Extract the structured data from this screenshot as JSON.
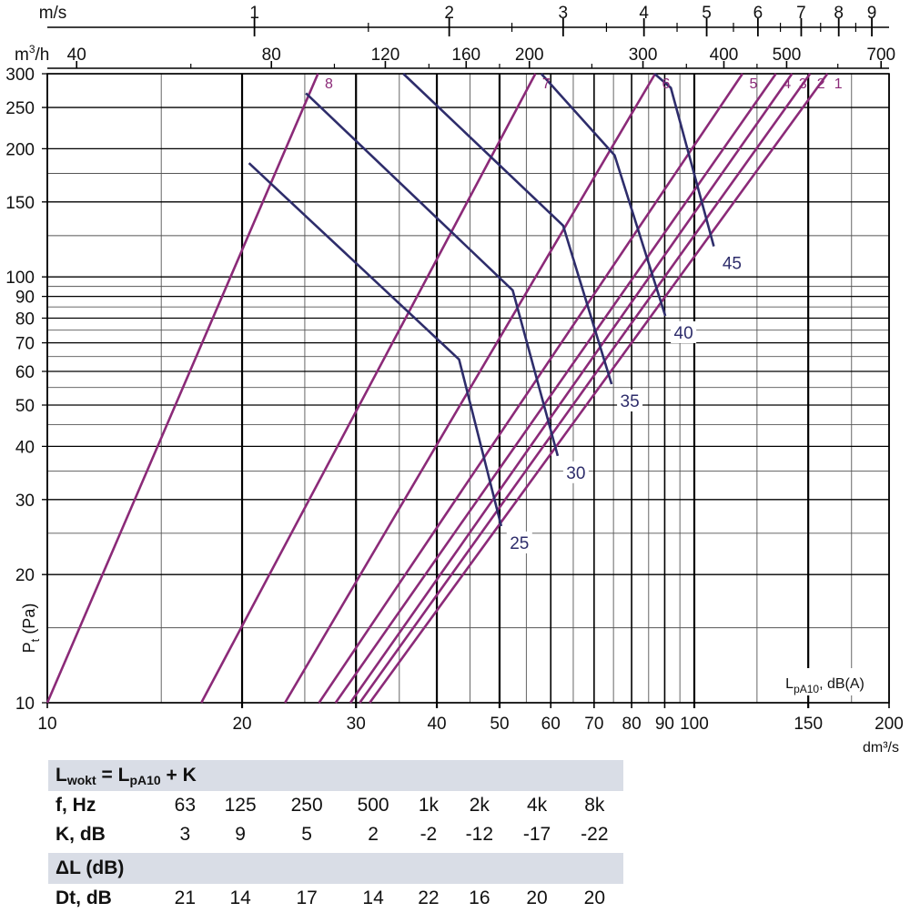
{
  "chart_data": {
    "type": "line",
    "x_scale": "log",
    "y_scale": "log",
    "xlim": [
      10,
      200
    ],
    "ylim": [
      10,
      300
    ],
    "xlabel": "dm³/s",
    "ylabel": "Pt (Pa)",
    "ylabel_main": "P",
    "ylabel_sub": "t",
    "ylabel_unit": " (Pa)",
    "x_ticks": [
      10,
      20,
      30,
      40,
      50,
      60,
      70,
      80,
      90,
      100,
      150,
      200
    ],
    "y_ticks": [
      10,
      20,
      30,
      40,
      50,
      60,
      70,
      80,
      90,
      100,
      150,
      200,
      250,
      300
    ],
    "top_axis_ms": {
      "label": "m/s",
      "ticks": [
        {
          "label": "1",
          "x": 20.9
        },
        {
          "label": "2",
          "x": 41.8
        },
        {
          "label": "3",
          "x": 62.7
        },
        {
          "label": "4",
          "x": 83.6
        },
        {
          "label": "5",
          "x": 104.5
        },
        {
          "label": "6",
          "x": 125.4
        },
        {
          "label": "7",
          "x": 146.3
        },
        {
          "label": "8",
          "x": 167.2
        },
        {
          "label": "9",
          "x": 188.1
        }
      ]
    },
    "top_axis_m3h": {
      "label_main": "m",
      "label_sup": "3",
      "label_tail": "/h",
      "ticks": [
        {
          "label": "40",
          "x": 11.1
        },
        {
          "label": "80",
          "x": 22.2
        },
        {
          "label": "120",
          "x": 33.3
        },
        {
          "label": "160",
          "x": 44.4
        },
        {
          "label": "200",
          "x": 55.6
        },
        {
          "label": "300",
          "x": 83.3
        },
        {
          "label": "400",
          "x": 111.1
        },
        {
          "label": "500",
          "x": 138.9
        },
        {
          "label": "700",
          "x": 194.4
        }
      ]
    },
    "damper_lines": [
      {
        "label": "8",
        "x10": 10.0,
        "x300": 26.2
      },
      {
        "label": "7",
        "x10": 17.3,
        "x300": 56.8
      },
      {
        "label": "6",
        "x10": 23.3,
        "x300": 87.0
      },
      {
        "label": "5",
        "x10": 26.3,
        "x300": 118.7
      },
      {
        "label": "4",
        "x10": 27.9,
        "x300": 133.7
      },
      {
        "label": "3",
        "x10": 29.4,
        "x300": 141.6
      },
      {
        "label": "2",
        "x10": 30.4,
        "x300": 151.0
      },
      {
        "label": "1",
        "x10": 31.5,
        "x300": 160.6
      }
    ],
    "sound_curves": [
      {
        "label": "25",
        "points": [
          [
            20.5,
            185
          ],
          [
            43.3,
            64
          ],
          [
            50.3,
            26
          ]
        ]
      },
      {
        "label": "30",
        "points": [
          [
            25.1,
            270
          ],
          [
            52.4,
            93
          ],
          [
            61.5,
            38
          ]
        ]
      },
      {
        "label": "35",
        "points": [
          [
            35.5,
            300
          ],
          [
            62.7,
            132
          ],
          [
            74.5,
            56
          ]
        ]
      },
      {
        "label": "40",
        "points": [
          [
            58.0,
            300
          ],
          [
            75.3,
            193
          ],
          [
            90.2,
            81
          ]
        ]
      },
      {
        "label": "45",
        "points": [
          [
            86.8,
            300
          ],
          [
            92.0,
            278
          ],
          [
            107.2,
            118
          ]
        ]
      }
    ],
    "lpa_label_main": "L",
    "lpa_label_sub": "pA10",
    "lpa_label_tail": ", dB(A)",
    "colors": {
      "damper": "#8b2a78",
      "sound": "#2e2d6b",
      "grid_major": "#000000",
      "grid_minor": "#555555",
      "band": "#d9dde6"
    }
  },
  "table": {
    "formula_main": "L",
    "formula_sub1": "wokt",
    "formula_eq": " = L",
    "formula_sub2": "pA10",
    "formula_tail": " + K",
    "rows": [
      {
        "label": "f, Hz",
        "values": [
          "63",
          "125",
          "250",
          "500",
          "1k",
          "2k",
          "4k",
          "8k"
        ]
      },
      {
        "label": "K, dB",
        "values": [
          "3",
          "9",
          "5",
          "2",
          "-2",
          "-12",
          "-17",
          "-22"
        ]
      }
    ],
    "delta_header": "ΔL (dB)",
    "dt_row": {
      "label": "Dt, dB",
      "values": [
        "21",
        "14",
        "17",
        "14",
        "22",
        "16",
        "20",
        "20"
      ]
    }
  }
}
